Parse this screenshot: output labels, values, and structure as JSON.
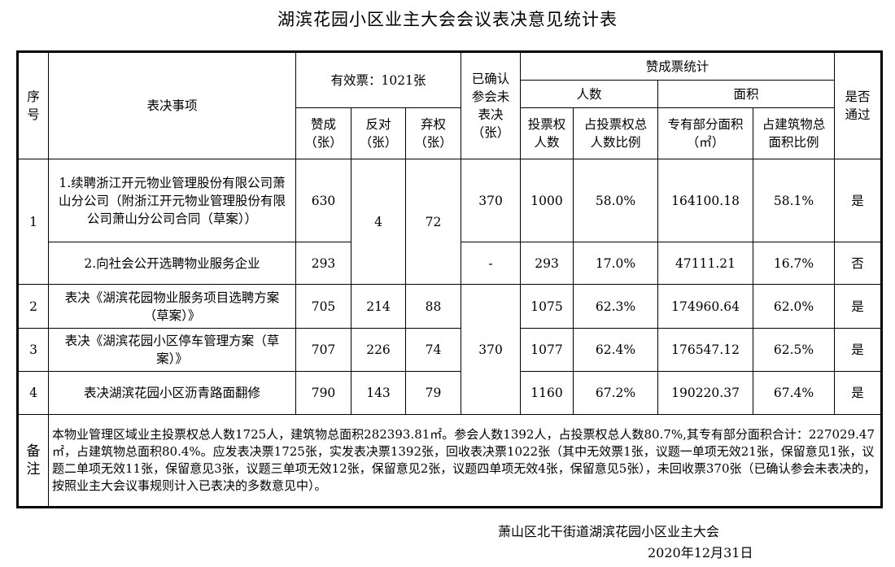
{
  "title": "湖滨花园小区业主大会会议表决意见统计表",
  "headers": {
    "seq": "序号",
    "item": "表决事项",
    "valid": "有效票：1021张",
    "confirmed": "已确认参会未表决（张）",
    "stats": "赞成票统计",
    "people": "人数",
    "area": "面积",
    "passed": "是否通过",
    "for": "赞成（张）",
    "against": "反对（张）",
    "abstain": "弃权（张）",
    "voters": "投票权人数",
    "voters_ratio": "占投票权总人数比例",
    "private_area": "专有部分面积（㎡）",
    "area_ratio": "占建筑物总面积比例"
  },
  "rows": [
    {
      "seq": "1",
      "item": "1.续聘浙江开元物业管理股份有限公司萧山分公司（附浙江开元物业管理股份有限公司萧山分公司合同（草案））",
      "for": "630",
      "against": "4",
      "abstain": "72",
      "confirmed": "370",
      "voters": "1000",
      "voters_ratio": "58.0%",
      "area": "164100.18",
      "area_ratio": "58.1%",
      "passed": "是"
    },
    {
      "seq": "",
      "item": "2.向社会公开选聘物业服务企业",
      "for": "293",
      "against": "",
      "abstain": "",
      "confirmed": "-",
      "voters": "293",
      "voters_ratio": "17.0%",
      "area": "47111.21",
      "area_ratio": "16.7%",
      "passed": "否"
    },
    {
      "seq": "2",
      "item": "表决《湖滨花园物业服务项目选聘方案（草案）》",
      "for": "705",
      "against": "214",
      "abstain": "88",
      "confirmed": "370",
      "voters": "1075",
      "voters_ratio": "62.3%",
      "area": "174960.64",
      "area_ratio": "62.0%",
      "passed": "是"
    },
    {
      "seq": "3",
      "item": "表决《湖滨花园小区停车管理方案（草案）》",
      "for": "707",
      "against": "226",
      "abstain": "74",
      "confirmed": "",
      "voters": "1077",
      "voters_ratio": "62.4%",
      "area": "176547.12",
      "area_ratio": "62.5%",
      "passed": "是"
    },
    {
      "seq": "4",
      "item": "表决湖滨花园小区沥青路面翻修",
      "for": "790",
      "against": "143",
      "abstain": "79",
      "confirmed": "",
      "voters": "1160",
      "voters_ratio": "67.2%",
      "area": "190220.37",
      "area_ratio": "67.4%",
      "passed": "是"
    }
  ],
  "note_label": "备注",
  "note": "本物业管理区域业主投票权总人数1725人，建筑物总面积282393.81㎡。参会人数1392人，占投票权总人数80.7%,其专有部分面积合计：227029.47㎡，占建筑物总面积80.4%。应发表决票1725张，实发表决票1392张，回收表决票1022张（其中无效票1张，议题一单项无效21张，保留意见1张，议题二单项无效11张，保留意见3张，议题三单项无效12张，保留意见2张，议题四单项无效4张，保留意见5张），未回收票370张（已确认参会未表决的，按照业主大会议事规则计入已表决的多数意见中）。",
  "footer": {
    "org": "萧山区北干街道湖滨花园小区业主大会",
    "date": "2020年12月31日"
  }
}
